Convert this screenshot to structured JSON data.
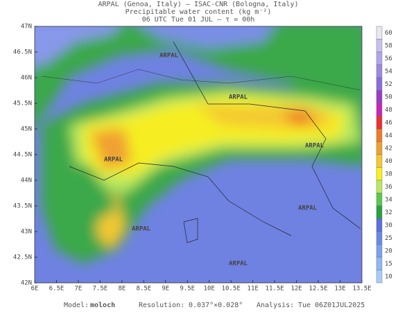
{
  "header": {
    "lines": [
      "ARPAL (Genoa, Italy)  —  ISAC-CNR (Bologna, Italy)",
      "Precipitable water content (kg m⁻²)",
      "06 UTC Tue 01 JUL  —  τ = 00h"
    ]
  },
  "map": {
    "lat_labels": [
      "47N",
      "46.5N",
      "46N",
      "45.5N",
      "45N",
      "44.5N",
      "44N",
      "43.5N",
      "43N",
      "42.5N",
      "42N"
    ],
    "lon_labels": [
      "6E",
      "6.5E",
      "7E",
      "7.5E",
      "8E",
      "8.5E",
      "9E",
      "9.5E",
      "10E",
      "10.5E",
      "11E",
      "11.5E",
      "12E",
      "12.5E",
      "13E",
      "13.5E"
    ],
    "watermark": "ARPAL"
  },
  "colorbar": {
    "labels": [
      60,
      58,
      56,
      54,
      52,
      50,
      48,
      46,
      44,
      42,
      40,
      38,
      36,
      34,
      32,
      30,
      25,
      20,
      15,
      10
    ],
    "colors": [
      "#e8e8f0",
      "#c8c0ee",
      "#b0a4ea",
      "#9c88e4",
      "#8a6cdc",
      "#9a3cc8",
      "#c826b4",
      "#e83232",
      "#f07a28",
      "#f0a030",
      "#f4c830",
      "#f8f020",
      "#b8e860",
      "#5ac850",
      "#2aa040",
      "#5a6ee0",
      "#6a88e8",
      "#7aa0f0",
      "#8cb8f4",
      "#a8ccf8"
    ]
  },
  "footer": {
    "model_label": "Model:",
    "model": "moloch",
    "resolution_label": "Resolution:",
    "resolution": "0.037°×0.028°",
    "analysis_label": "Analysis:",
    "analysis": "Tue 06Z01JUL2025"
  }
}
